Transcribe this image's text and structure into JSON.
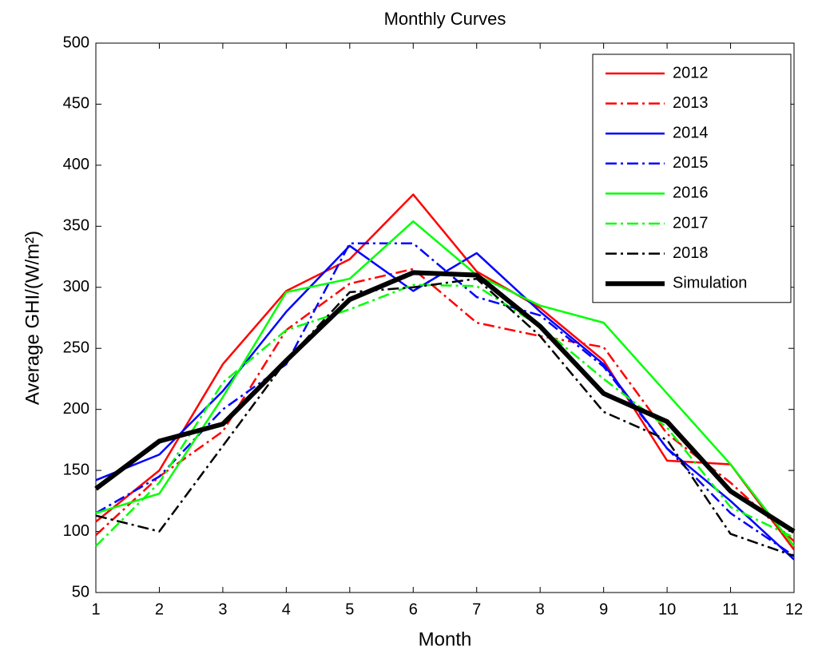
{
  "chart_data": {
    "type": "line",
    "title": "Monthly Curves",
    "xlabel": "Month",
    "ylabel": "Average GHI/(W/m²)",
    "x": [
      1,
      2,
      3,
      4,
      5,
      6,
      7,
      8,
      9,
      10,
      11,
      12
    ],
    "xlim": [
      1,
      12
    ],
    "xticks": [
      1,
      2,
      3,
      4,
      5,
      6,
      7,
      8,
      9,
      10,
      11,
      12
    ],
    "ylim": [
      50,
      500
    ],
    "yticks": [
      50,
      100,
      150,
      200,
      250,
      300,
      350,
      400,
      450,
      500
    ],
    "grid": false,
    "legend": "upper right",
    "series": [
      {
        "name": "2012",
        "color": "#ff0000",
        "style": "solid",
        "width": 2.5,
        "values": [
          108,
          150,
          237,
          297,
          323,
          376,
          313,
          283,
          240,
          158,
          155,
          85
        ]
      },
      {
        "name": "2013",
        "color": "#ff0000",
        "style": "dashdot",
        "width": 2.5,
        "values": [
          97,
          145,
          182,
          265,
          303,
          315,
          271,
          260,
          251,
          180,
          140,
          92
        ]
      },
      {
        "name": "2014",
        "color": "#0000ff",
        "style": "solid",
        "width": 2.5,
        "values": [
          142,
          163,
          215,
          280,
          334,
          297,
          328,
          280,
          237,
          168,
          125,
          77
        ]
      },
      {
        "name": "2015",
        "color": "#0000ff",
        "style": "dashdot",
        "width": 2.5,
        "values": [
          115,
          145,
          200,
          237,
          336,
          336,
          292,
          277,
          235,
          168,
          115,
          80
        ]
      },
      {
        "name": "2016",
        "color": "#00ff00",
        "style": "solid",
        "width": 2.5,
        "values": [
          115,
          131,
          210,
          296,
          307,
          354,
          310,
          285,
          271,
          213,
          155,
          88
        ]
      },
      {
        "name": "2017",
        "color": "#00ff00",
        "style": "dashdot",
        "width": 2.5,
        "values": [
          88,
          140,
          222,
          265,
          282,
          302,
          301,
          268,
          225,
          185,
          120,
          95
        ]
      },
      {
        "name": "2018",
        "color": "#000000",
        "style": "dashdot",
        "width": 2.5,
        "values": [
          113,
          100,
          170,
          240,
          296,
          300,
          307,
          260,
          198,
          175,
          98,
          80
        ]
      },
      {
        "name": "Simulation",
        "color": "#000000",
        "style": "solid",
        "width": 6,
        "values": [
          135,
          174,
          188,
          240,
          290,
          312,
          310,
          268,
          213,
          190,
          133,
          100
        ]
      }
    ]
  }
}
